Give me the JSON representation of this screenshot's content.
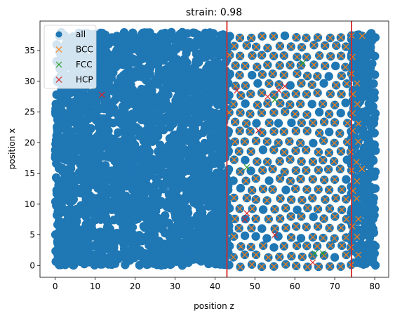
{
  "chart_data": {
    "type": "scatter",
    "title": "strain: 0.98",
    "xlabel": "position z",
    "ylabel": "position x",
    "xlim": [
      -3.8,
      83.5
    ],
    "ylim": [
      -1.9,
      39.8
    ],
    "xticks": [
      0,
      10,
      20,
      30,
      40,
      50,
      60,
      70,
      80
    ],
    "yticks": [
      0,
      5,
      10,
      15,
      20,
      25,
      30,
      35
    ],
    "grid": false,
    "legend_position": "upper-left",
    "vertical_lines": [
      {
        "x": 43.0,
        "color": "#d62728"
      },
      {
        "x": 74.2,
        "color": "#d62728"
      }
    ],
    "series": [
      {
        "name": "all",
        "marker": "circle",
        "color": "#1f77b4",
        "description_region": "dense amorphous region z 0..43 plus crystalline lattice z 43..80",
        "x_range": [
          0,
          80
        ],
        "y_range": [
          0,
          38
        ]
      },
      {
        "name": "BCC",
        "marker": "x",
        "color": "#ff7f0e",
        "x_range": [
          43,
          77
        ],
        "y_range": [
          0,
          38
        ]
      },
      {
        "name": "FCC",
        "marker": "x",
        "color": "#2ca02c",
        "points": [
          [
            48,
            16
          ],
          [
            55,
            27
          ],
          [
            62,
            33
          ],
          [
            65,
            2
          ],
          [
            67,
            2
          ]
        ]
      },
      {
        "name": "HCP",
        "marker": "x",
        "color": "#d62728",
        "points": [
          [
            11.7,
            27.8
          ],
          [
            45.5,
            28.5
          ],
          [
            50.9,
            22.0
          ],
          [
            53.2,
            27.5
          ],
          [
            56,
            28.5
          ],
          [
            57.5,
            29.2
          ],
          [
            48.0,
            8.5
          ],
          [
            47.5,
            7.5
          ],
          [
            64.5,
            0.5
          ],
          [
            55,
            5
          ]
        ]
      }
    ]
  }
}
